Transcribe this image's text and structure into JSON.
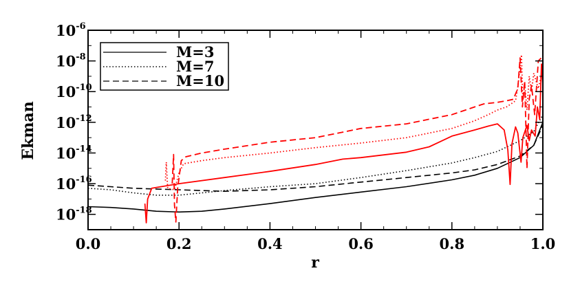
{
  "chart_data": {
    "type": "line",
    "title": "",
    "xlabel": "r",
    "ylabel": "Ekman",
    "xlim": [
      0.0,
      1.0
    ],
    "ylim_log10": [
      -19,
      -6
    ],
    "y_scale": "log",
    "grid": false,
    "legend_position": "top-left",
    "x_ticks": [
      "0.0",
      "0.2",
      "0.4",
      "0.6",
      "0.8",
      "1.0"
    ],
    "y_ticks": [
      {
        "base": "10",
        "exp": "-6",
        "log10": -6
      },
      {
        "base": "10",
        "exp": "-8",
        "log10": -8
      },
      {
        "base": "10",
        "exp": "-10",
        "log10": -10
      },
      {
        "base": "10",
        "exp": "-12",
        "log10": -12
      },
      {
        "base": "10",
        "exp": "-14",
        "log10": -14
      },
      {
        "base": "10",
        "exp": "-16",
        "log10": -16
      },
      {
        "base": "10",
        "exp": "-18",
        "log10": -18
      }
    ],
    "legend": [
      {
        "label": "M=3",
        "dash": "solid"
      },
      {
        "label": "M=7",
        "dash": "dotted"
      },
      {
        "label": "M=10",
        "dash": "dashed"
      }
    ],
    "series": [
      {
        "color": "#000000",
        "dash": "solid",
        "points": [
          [
            0.0,
            -17.5
          ],
          [
            0.05,
            -17.55
          ],
          [
            0.1,
            -17.65
          ],
          [
            0.15,
            -17.8
          ],
          [
            0.2,
            -17.85
          ],
          [
            0.25,
            -17.8
          ],
          [
            0.3,
            -17.65
          ],
          [
            0.4,
            -17.3
          ],
          [
            0.5,
            -16.9
          ],
          [
            0.6,
            -16.55
          ],
          [
            0.7,
            -16.2
          ],
          [
            0.8,
            -15.75
          ],
          [
            0.85,
            -15.45
          ],
          [
            0.9,
            -15.0
          ],
          [
            0.95,
            -14.3
          ],
          [
            0.98,
            -13.5
          ],
          [
            1.0,
            -12.0
          ]
        ]
      },
      {
        "color": "#000000",
        "dash": "dotted",
        "points": [
          [
            0.0,
            -16.3
          ],
          [
            0.05,
            -16.4
          ],
          [
            0.1,
            -16.6
          ],
          [
            0.15,
            -16.75
          ],
          [
            0.2,
            -16.75
          ],
          [
            0.25,
            -16.6
          ],
          [
            0.3,
            -16.45
          ],
          [
            0.4,
            -16.2
          ],
          [
            0.5,
            -16.0
          ],
          [
            0.6,
            -15.6
          ],
          [
            0.7,
            -15.15
          ],
          [
            0.8,
            -14.65
          ],
          [
            0.85,
            -14.3
          ],
          [
            0.9,
            -13.9
          ],
          [
            0.95,
            -13.2
          ],
          [
            0.98,
            -12.6
          ],
          [
            1.0,
            -11.5
          ]
        ]
      },
      {
        "color": "#000000",
        "dash": "dashed",
        "points": [
          [
            0.0,
            -16.1
          ],
          [
            0.05,
            -16.2
          ],
          [
            0.1,
            -16.3
          ],
          [
            0.15,
            -16.35
          ],
          [
            0.2,
            -16.4
          ],
          [
            0.25,
            -16.45
          ],
          [
            0.3,
            -16.5
          ],
          [
            0.4,
            -16.4
          ],
          [
            0.5,
            -16.2
          ],
          [
            0.6,
            -15.9
          ],
          [
            0.7,
            -15.6
          ],
          [
            0.8,
            -15.3
          ],
          [
            0.85,
            -15.1
          ],
          [
            0.9,
            -14.75
          ],
          [
            0.95,
            -14.2
          ],
          [
            0.98,
            -13.5
          ],
          [
            1.0,
            -12.2
          ]
        ]
      },
      {
        "color": "#ff0000",
        "dash": "solid",
        "points": [
          [
            0.125,
            -17.3
          ],
          [
            0.128,
            -18.55
          ],
          [
            0.131,
            -17.0
          ],
          [
            0.14,
            -16.3
          ],
          [
            0.2,
            -16.0
          ],
          [
            0.3,
            -15.6
          ],
          [
            0.4,
            -15.2
          ],
          [
            0.5,
            -14.75
          ],
          [
            0.56,
            -14.4
          ],
          [
            0.6,
            -14.3
          ],
          [
            0.7,
            -13.95
          ],
          [
            0.75,
            -13.6
          ],
          [
            0.8,
            -12.9
          ],
          [
            0.85,
            -12.5
          ],
          [
            0.88,
            -12.25
          ],
          [
            0.9,
            -12.1
          ],
          [
            0.915,
            -12.5
          ],
          [
            0.923,
            -13.8
          ],
          [
            0.928,
            -16.05
          ],
          [
            0.932,
            -13.4
          ],
          [
            0.94,
            -12.3
          ],
          [
            0.945,
            -12.7
          ],
          [
            0.952,
            -14.6
          ],
          [
            0.956,
            -13.0
          ],
          [
            0.965,
            -12.2
          ],
          [
            0.97,
            -13.2
          ],
          [
            0.975,
            -12.5
          ],
          [
            0.983,
            -12.9
          ],
          [
            0.988,
            -11.0
          ],
          [
            0.993,
            -11.8
          ],
          [
            0.997,
            -8.2
          ],
          [
            1.0,
            -9.5
          ]
        ]
      },
      {
        "color": "#ff0000",
        "dash": "dotted",
        "points": [
          [
            0.17,
            -15.8
          ],
          [
            0.172,
            -14.6
          ],
          [
            0.175,
            -16.3
          ],
          [
            0.19,
            -16.4
          ],
          [
            0.2,
            -15.3
          ],
          [
            0.21,
            -14.7
          ],
          [
            0.25,
            -14.5
          ],
          [
            0.3,
            -14.3
          ],
          [
            0.4,
            -14.0
          ],
          [
            0.5,
            -13.65
          ],
          [
            0.6,
            -13.35
          ],
          [
            0.7,
            -13.0
          ],
          [
            0.8,
            -12.4
          ],
          [
            0.85,
            -11.9
          ],
          [
            0.88,
            -11.5
          ],
          [
            0.9,
            -11.2
          ],
          [
            0.92,
            -11.0
          ],
          [
            0.93,
            -10.8
          ],
          [
            0.94,
            -10.6
          ],
          [
            0.945,
            -9.7
          ],
          [
            0.95,
            -8.4
          ],
          [
            0.953,
            -7.6
          ],
          [
            0.956,
            -10.6
          ],
          [
            0.96,
            -9.5
          ],
          [
            0.965,
            -11.2
          ],
          [
            0.97,
            -9.0
          ],
          [
            0.975,
            -10.0
          ],
          [
            0.98,
            -8.8
          ],
          [
            0.99,
            -9.8
          ],
          [
            1.0,
            -8.5
          ]
        ]
      },
      {
        "color": "#ff0000",
        "dash": "dashed",
        "points": [
          [
            0.185,
            -16.0
          ],
          [
            0.188,
            -14.1
          ],
          [
            0.19,
            -17.4
          ],
          [
            0.193,
            -18.5
          ],
          [
            0.197,
            -16.3
          ],
          [
            0.205,
            -14.5
          ],
          [
            0.215,
            -14.25
          ],
          [
            0.25,
            -14.0
          ],
          [
            0.3,
            -13.75
          ],
          [
            0.4,
            -13.3
          ],
          [
            0.5,
            -13.0
          ],
          [
            0.6,
            -12.4
          ],
          [
            0.7,
            -12.1
          ],
          [
            0.8,
            -11.5
          ],
          [
            0.85,
            -11.0
          ],
          [
            0.87,
            -10.8
          ],
          [
            0.9,
            -10.7
          ],
          [
            0.92,
            -10.6
          ],
          [
            0.935,
            -10.5
          ],
          [
            0.945,
            -9.8
          ],
          [
            0.95,
            -7.8
          ],
          [
            0.955,
            -11.0
          ],
          [
            0.96,
            -9.3
          ],
          [
            0.965,
            -15.0
          ],
          [
            0.97,
            -10.5
          ],
          [
            0.975,
            -9.6
          ],
          [
            0.982,
            -11.5
          ],
          [
            0.99,
            -8.0
          ],
          [
            1.0,
            -7.7
          ]
        ]
      }
    ]
  }
}
